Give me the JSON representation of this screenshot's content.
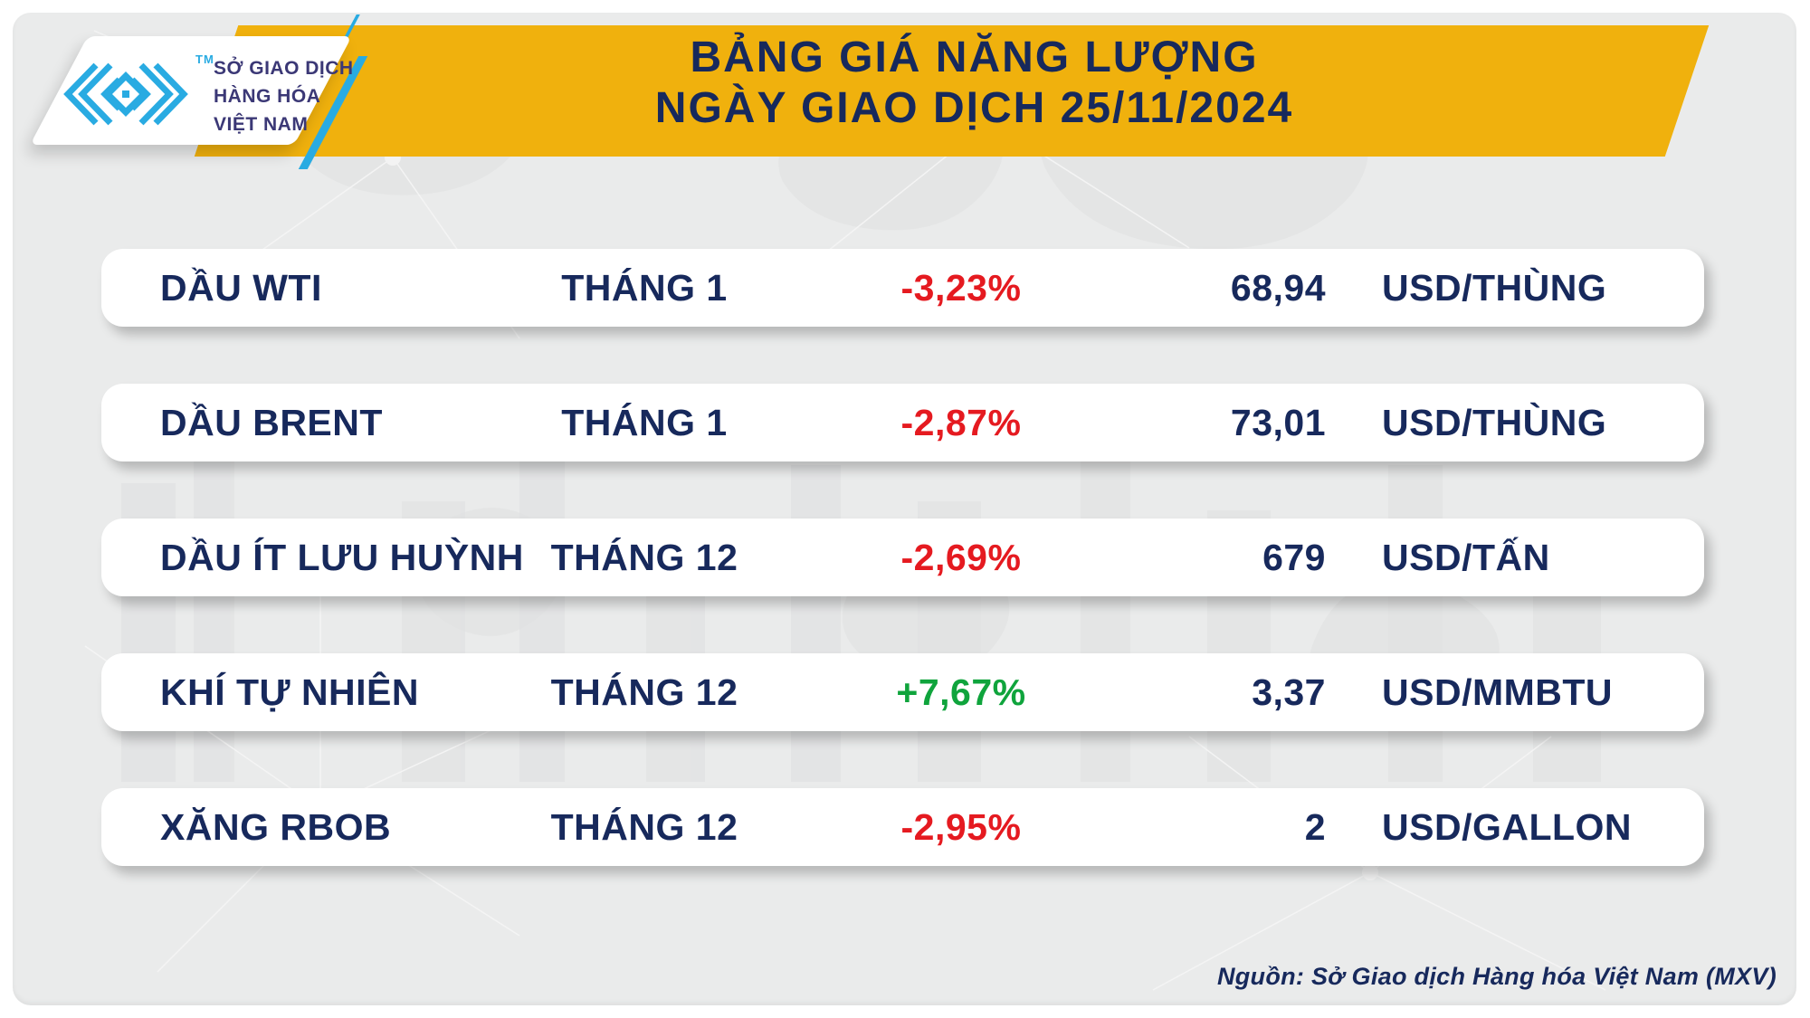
{
  "header": {
    "title_line1": "BẢNG GIÁ NĂNG LƯỢNG",
    "title_line2": "NGÀY GIAO DỊCH 25/11/2024"
  },
  "logo": {
    "tm": "TM",
    "org_line1": "SỞ GIAO DỊCH",
    "org_line2": "HÀNG HÓA",
    "org_line3": "VIỆT NAM"
  },
  "table": {
    "rows": [
      {
        "name": "DẦU WTI",
        "month": "THÁNG 1",
        "change": "-3,23%",
        "value": "68,94",
        "unit": "USD/THÙNG"
      },
      {
        "name": "DẦU BRENT",
        "month": "THÁNG 1",
        "change": "-2,87%",
        "value": "73,01",
        "unit": "USD/THÙNG"
      },
      {
        "name": "DẦU ÍT LƯU HUỲNH",
        "month": "THÁNG 12",
        "change": "-2,69%",
        "value": "679",
        "unit": "USD/TẤN"
      },
      {
        "name": "KHÍ TỰ NHIÊN",
        "month": "THÁNG 12",
        "change": "+7,67%",
        "value": "3,37",
        "unit": "USD/MMBTU"
      },
      {
        "name": "XĂNG RBOB",
        "month": "THÁNG 12",
        "change": "-2,95%",
        "value": "2",
        "unit": "USD/GALLON"
      }
    ]
  },
  "footer": {
    "source": "Nguồn: Sở Giao dịch Hàng hóa Việt Nam (MXV)"
  },
  "chart_data": {
    "type": "table",
    "title": "BẢNG GIÁ NĂNG LƯỢNG",
    "trading_date": "25/11/2024",
    "rows": [
      {
        "name": "DẦU WTI",
        "month": "THÁNG 1",
        "change_pct": -3.23,
        "price": 68.94,
        "unit": "USD/THÙNG"
      },
      {
        "name": "DẦU BRENT",
        "month": "THÁNG 1",
        "change_pct": -2.87,
        "price": 73.01,
        "unit": "USD/THÙNG"
      },
      {
        "name": "DẦU ÍT LƯU HUỲNH",
        "month": "THÁNG 12",
        "change_pct": -2.69,
        "price": 679,
        "unit": "USD/TẤN"
      },
      {
        "name": "KHÍ TỰ NHIÊN",
        "month": "THÁNG 12",
        "change_pct": 7.67,
        "price": 3.37,
        "unit": "USD/MMBTU"
      },
      {
        "name": "XĂNG RBOB",
        "month": "THÁNG 12",
        "change_pct": -2.95,
        "price": 2,
        "unit": "USD/GALLON"
      }
    ],
    "source": "Nguồn: Sở Giao dịch Hàng hóa Việt Nam (MXV)"
  },
  "colors": {
    "navy": "#17295c",
    "red": "#e51a20",
    "green": "#0fa43c",
    "yellow": "#f0b10d",
    "blue": "#29abe2",
    "logo_text": "#3b3876",
    "canvas": "#eaebeb"
  }
}
